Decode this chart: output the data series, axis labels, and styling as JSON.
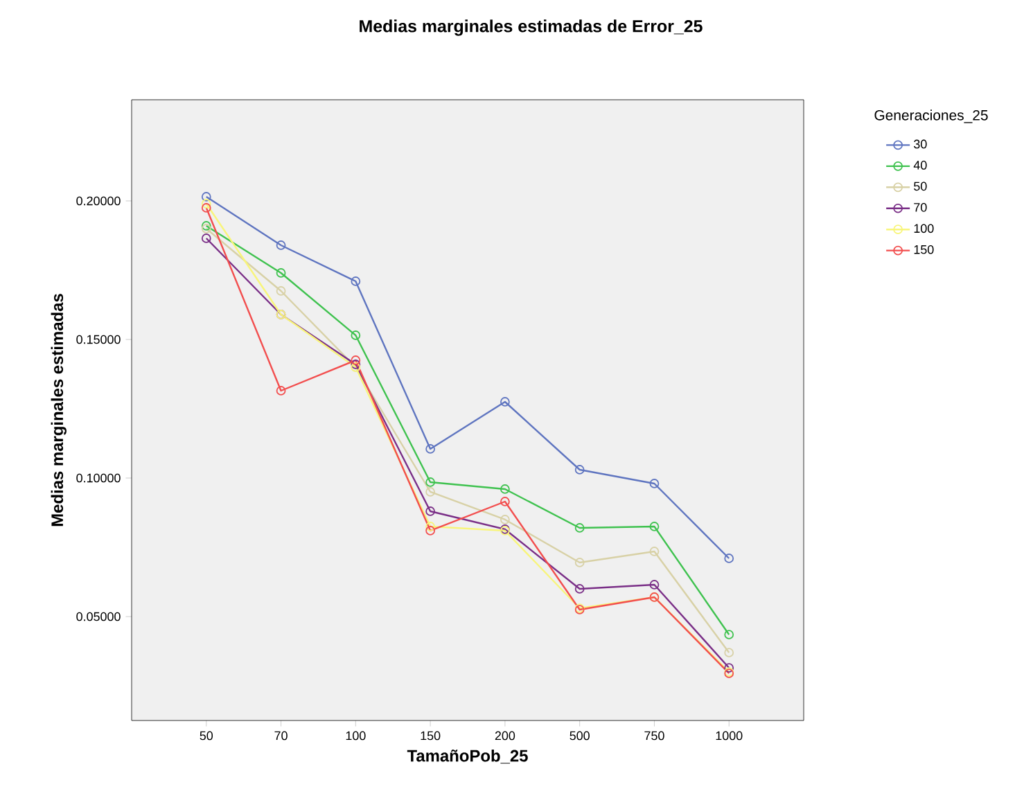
{
  "chart_data": {
    "type": "line",
    "title": "Medias marginales estimadas de Error_25",
    "xlabel": "TamañoPob_25",
    "ylabel": "Medias marginales estimadas",
    "legend_title": "Generaciones_25",
    "categories": [
      "50",
      "70",
      "100",
      "150",
      "200",
      "500",
      "750",
      "1000"
    ],
    "series": [
      {
        "name": "30",
        "color": "#5f75c0",
        "values": [
          0.2015,
          0.184,
          0.171,
          0.1105,
          0.1275,
          0.103,
          0.098,
          0.071
        ]
      },
      {
        "name": "40",
        "color": "#3fc24f",
        "values": [
          0.191,
          0.174,
          0.1515,
          0.0985,
          0.096,
          0.082,
          0.0825,
          0.0435
        ]
      },
      {
        "name": "50",
        "color": "#d8d1a6",
        "values": [
          0.19,
          0.1675,
          0.14,
          0.095,
          0.085,
          0.0695,
          0.0735,
          0.037
        ]
      },
      {
        "name": "70",
        "color": "#7a2f87",
        "values": [
          0.1865,
          0.159,
          0.141,
          0.088,
          0.0815,
          0.06,
          0.0615,
          0.0315
        ]
      },
      {
        "name": "100",
        "color": "#f8f57a",
        "values": [
          0.199,
          0.159,
          0.14,
          0.0825,
          0.081,
          0.053,
          0.057,
          0.03
        ]
      },
      {
        "name": "150",
        "color": "#f24e4e",
        "values": [
          0.1975,
          0.1315,
          0.1425,
          0.081,
          0.0915,
          0.0525,
          0.057,
          0.0295
        ]
      }
    ],
    "ylim": [
      0.0125,
      0.2365
    ],
    "yticks": [
      {
        "value": 0.05,
        "label": "0.05000"
      },
      {
        "value": 0.1,
        "label": "0.10000"
      },
      {
        "value": 0.15,
        "label": "0.15000"
      },
      {
        "value": 0.2,
        "label": "0.20000"
      }
    ],
    "grid": false,
    "legend": "right",
    "marker": "circle",
    "line_style": "solid"
  }
}
